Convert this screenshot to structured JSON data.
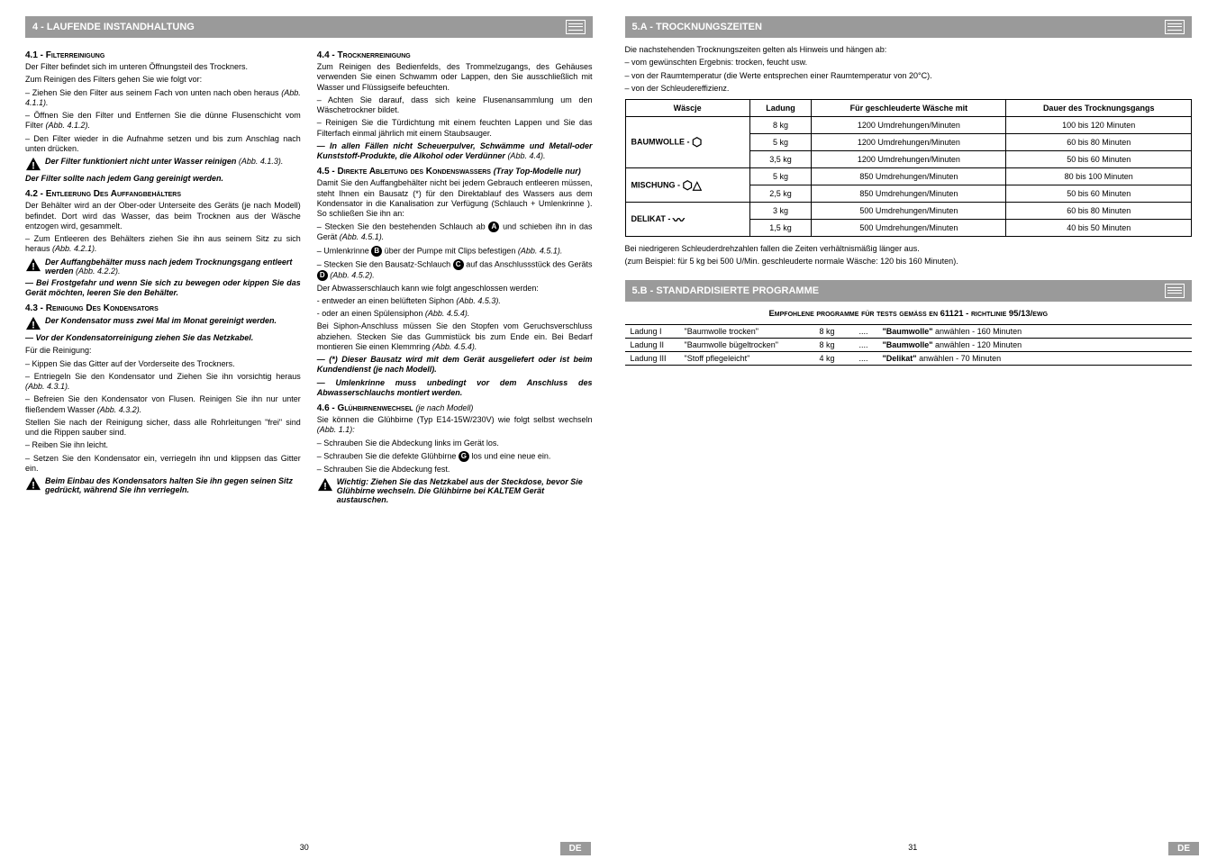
{
  "left": {
    "bar": "4 - LAUFENDE INSTANDHALTUNG",
    "s41": {
      "h": "4.1 - Filterreinigung",
      "p1": "Der Filter befindet sich im unteren Öffnungsteil des Trockners.",
      "p2": "Zum Reinigen des Filters gehen Sie wie folgt vor:",
      "p3": "– Ziehen Sie den Filter aus seinem Fach von unten nach oben heraus ",
      "p3i": "(Abb. 4.1.1).",
      "p4": "– Öffnen Sie den Filter und Entfernen Sie die dünne Flusenschicht vom Filter ",
      "p4i": "(Abb. 4.1.2).",
      "p5": "– Den Filter wieder in die Aufnahme setzen und bis zum Anschlag nach unten drücken.",
      "w1a": "Der Filter funktioniert nicht unter Wasser reinigen ",
      "w1b": "(Abb. 4.1.3).",
      "w2": "Der Filter sollte nach jedem Gang gereinigt werden."
    },
    "s42": {
      "h": "4.2 - Entleerung Des Auffangbehälters",
      "p1": "Der Behälter wird an der Ober-oder Unterseite des Geräts (je nach Modell) befindet. Dort wird das Wasser, das beim Trocknen aus der Wäsche entzogen wird, gesammelt.",
      "p2": "– Zum Entleeren des Behälters ziehen Sie ihn aus seinem Sitz zu sich heraus ",
      "p2i": "(Abb. 4.2.1).",
      "w1a": "Der Auffangbehälter muss nach jedem Trocknungsgang entleert werden ",
      "w1b": "(Abb. 4.2.2).",
      "w2": "— Bei Frostgefahr und wenn Sie sich zu bewegen oder kippen Sie das Gerät möchten, leeren Sie den Behälter."
    },
    "s43": {
      "h": "4.3 - Reinigung Des Kondensators",
      "w1": "Der Kondensator muss zwei Mal im Monat gereinigt werden.",
      "w2": "— Vor der Kondensatorreinigung ziehen Sie das Netzkabel.",
      "p1": "Für die Reinigung:",
      "p2": "– Kippen Sie das Gitter auf der Vorderseite des Trockners.",
      "p3": "– Entriegeln Sie den Kondensator und Ziehen Sie ihn vorsichtig heraus ",
      "p3i": "(Abb. 4.3.1).",
      "p4": "– Befreien Sie den Kondensator von Flusen. Reinigen Sie ihn nur unter fließendem Wasser ",
      "p4i": "(Abb. 4.3.2).",
      "p5": "Stellen Sie nach der Reinigung sicher, dass alle Rohrleitungen \"frei\" sind und die Rippen sauber sind.",
      "p6": "– Reiben Sie ihn leicht.",
      "p7": "– Setzen Sie den Kondensator ein, verriegeln ihn und klippsen das Gitter ein.",
      "w3": "Beim Einbau des Kondensators halten Sie ihn gegen seinen Sitz gedrückt, während Sie ihn verriegeln."
    },
    "s44": {
      "h": "4.4 - Trocknerreinigung",
      "p1": "Zum Reinigen des Bedienfelds, des Trommelzugangs, des Gehäuses verwenden Sie einen Schwamm oder Lappen, den Sie ausschließlich mit Wasser und Flüssigseife befeuchten.",
      "p2": "– Achten Sie darauf, dass sich keine Flusenansammlung um den Wäschetrockner bildet.",
      "p3": "– Reinigen Sie die Türdichtung mit einem feuchten Lappen und Sie das Filterfach einmal jährlich mit einem Staubsauger.",
      "w1": "— In allen Fällen nicht Scheuerpulver, Schwämme und Metall-oder Kunststoff-Produkte, die Alkohol oder Verdünner ",
      "w1i": "(Abb. 4.4)."
    },
    "s45": {
      "h": "4.5 - Direkte Ableitung des Kondenswassers ",
      "hi": "(Tray Top-Modelle nur)",
      "p1": "Damit Sie den Auffangbehälter nicht bei jedem Gebrauch entleeren müssen, steht Ihnen ein Bausatz (*) für den Direktablauf des Wassers aus dem Kondensator in die Kanalisation zur Verfügung (Schlauch + Umlenkrinne ). So schließen Sie ihn an:",
      "p2a": "– Stecken Sie den bestehenden Schlauch ab ",
      "p2b": " und schieben ihn in das Gerät ",
      "p2i": "(Abb. 4.5.1).",
      "p3a": "– Umlenkrinne ",
      "p3b": " über der Pumpe mit Clips befestigen ",
      "p3i": "(Abb. 4.5.1).",
      "p4a": "– Stecken Sie den Bausatz-Schlauch ",
      "p4b": " auf das Anschlussstück des Geräts ",
      "p4i": "(Abb. 4.5.2).",
      "p5": "Der Abwasserschlauch kann wie folgt angeschlossen werden:",
      "p6": "- entweder an einen belüfteten Siphon ",
      "p6i": "(Abb. 4.5.3).",
      "p7": "- oder an einen Spülensiphon ",
      "p7i": "(Abb. 4.5.4).",
      "p8": "Bei Siphon-Anschluss müssen Sie den Stopfen vom Geruchsverschluss abziehen. Stecken Sie das Gummistück bis zum Ende ein. Bei Bedarf montieren Sie einen Klemmring ",
      "p8i": "(Abb. 4.5.4).",
      "w1": "— (*) Dieser Bausatz wird mit dem Gerät ausgeliefert oder ist beim Kundendienst (je nach Modell).",
      "w2": "— Umlenkrinne muss unbedingt vor dem Anschluss des Abwasserschlauchs montiert werden."
    },
    "s46": {
      "h": "4.6 - Glühbirnenwechsel ",
      "hi": "(je nach Modell)",
      "p1": "Sie können die Glühbirne (Typ E14-15W/230V) wie folgt selbst wechseln ",
      "p1i": "(Abb. 1.1):",
      "p2": "– Schrauben Sie die Abdeckung links im Gerät los.",
      "p3a": "– Schrauben Sie die defekte Glühbirne ",
      "p3b": " los und eine neue ein.",
      "p4": "– Schrauben Sie die Abdeckung fest.",
      "w1": "Wichtig: Ziehen Sie das Netzkabel aus der Steckdose, bevor Sie Glühbirne wechseln. Die Glühbirne bei KALTEM Gerät austauschen."
    },
    "pageno": "30"
  },
  "right": {
    "bar5a": "5.A - TROCKNUNGSZEITEN",
    "intro1": "Die nachstehenden Trocknungszeiten gelten als Hinweis und hängen ab:",
    "intro2": "– vom gewünschten Ergebnis: trocken, feucht usw.",
    "intro3": "– von der Raumtemperatur (die Werte entsprechen einer Raumtemperatur von 20°C).",
    "intro4": "– von der Schleudereffizienz.",
    "table": {
      "headers": [
        "Wäscje",
        "Ladung",
        "Für geschleuderte Wäsche mit",
        "Dauer des Trocknungsgangs"
      ],
      "rows": [
        {
          "cat": "BAUMWOLLE - ",
          "sym": "⬡",
          "span": 3,
          "cells": [
            [
              "8 kg",
              "1200 Umdrehungen/Minuten",
              "100 bis 120 Minuten"
            ],
            [
              "5 kg",
              "1200 Umdrehungen/Minuten",
              "60 bis 80 Minuten"
            ],
            [
              "3,5 kg",
              "1200 Umdrehungen/Minuten",
              "50 bis 60 Minuten"
            ]
          ]
        },
        {
          "cat": "MISCHUNG - ",
          "sym": "⬡△",
          "span": 2,
          "cells": [
            [
              "5 kg",
              "850 Umdrehungen/Minuten",
              "80 bis 100 Minuten"
            ],
            [
              "2,5 kg",
              "850 Umdrehungen/Minuten",
              "50 bis 60 Minuten"
            ]
          ]
        },
        {
          "cat": "DELIKAT - ",
          "sym": "〰",
          "span": 2,
          "cells": [
            [
              "3 kg",
              "500 Umdrehungen/Minuten",
              "60 bis 80 Minuten"
            ],
            [
              "1,5 kg",
              "500 Umdrehungen/Minuten",
              "40 bis 50 Minuten"
            ]
          ]
        }
      ]
    },
    "note1": "Bei niedrigeren Schleuderdrehzahlen fallen die Zeiten verhältnismäßig länger aus.",
    "note2": "(zum Beispiel: für 5 kg bei 500 U/Min. geschleuderte normale Wäsche: 120 bis 160 Minuten).",
    "bar5b": "5.B - STANDARDISIERTE PROGRAMME",
    "proghead": "Empfohlene programme für tests gemäss en 61121 - richtlinie 95/13/ewg",
    "progrows": [
      [
        "Ladung I",
        "\"Baumwolle trocken\"",
        "8 kg",
        "....",
        "\"Baumwolle\" anwählen - 160 Minuten"
      ],
      [
        "Ladung II",
        "\"Baumwolle bügeltrocken\"",
        "8 kg",
        "....",
        "\"Baumwolle\" anwählen - 120 Minuten"
      ],
      [
        "Ladung III",
        "\"Stoff pflegeleicht\"",
        "4 kg",
        "....",
        "\"Delikat\" anwählen - 70 Minuten"
      ]
    ],
    "progbold": [
      "Baumwolle",
      "Baumwolle",
      "Delikat"
    ],
    "pageno": "31",
    "de": "DE"
  }
}
